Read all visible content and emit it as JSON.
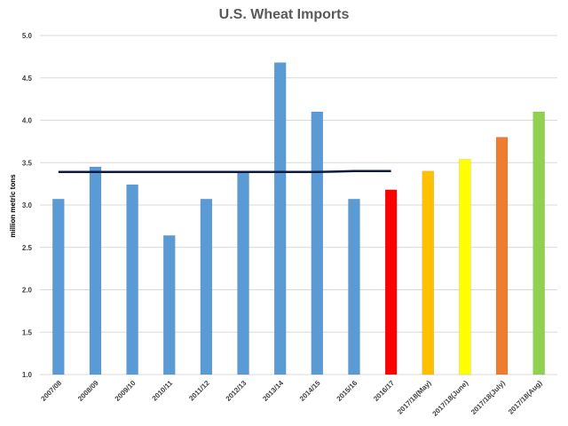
{
  "chart_data": {
    "type": "bar",
    "title": "U.S. Wheat Imports",
    "xlabel": "",
    "ylabel": "million metric tons",
    "ylim": [
      1.0,
      5.0
    ],
    "yticks": [
      "1.0",
      "1.5",
      "2.0",
      "2.5",
      "3.0",
      "3.5",
      "4.0",
      "4.5",
      "5.0"
    ],
    "grid": true,
    "categories": [
      "2007/08",
      "2008/09",
      "2009/10",
      "2010/11",
      "2011/12",
      "2012/13",
      "2013/14",
      "2014/15",
      "2015/16",
      "2016/17",
      "2017/18(May)",
      "2017/18(June)",
      "2017/18(July)",
      "2017/18(Aug)"
    ],
    "values": [
      3.07,
      3.45,
      3.24,
      2.64,
      3.07,
      3.38,
      4.68,
      4.1,
      3.07,
      3.18,
      3.4,
      3.54,
      3.8,
      4.1
    ],
    "bar_colors": [
      "#5b9bd5",
      "#5b9bd5",
      "#5b9bd5",
      "#5b9bd5",
      "#5b9bd5",
      "#5b9bd5",
      "#5b9bd5",
      "#5b9bd5",
      "#5b9bd5",
      "#ff0000",
      "#ffc000",
      "#ffff00",
      "#ed7d31",
      "#92d050"
    ],
    "reference_line": {
      "color": "#0b1a3e",
      "x_start": "2007/08",
      "x_end": "2016/17",
      "values": [
        3.39,
        3.39,
        3.39,
        3.39,
        3.39,
        3.39,
        3.39,
        3.39,
        3.4,
        3.4
      ]
    }
  }
}
